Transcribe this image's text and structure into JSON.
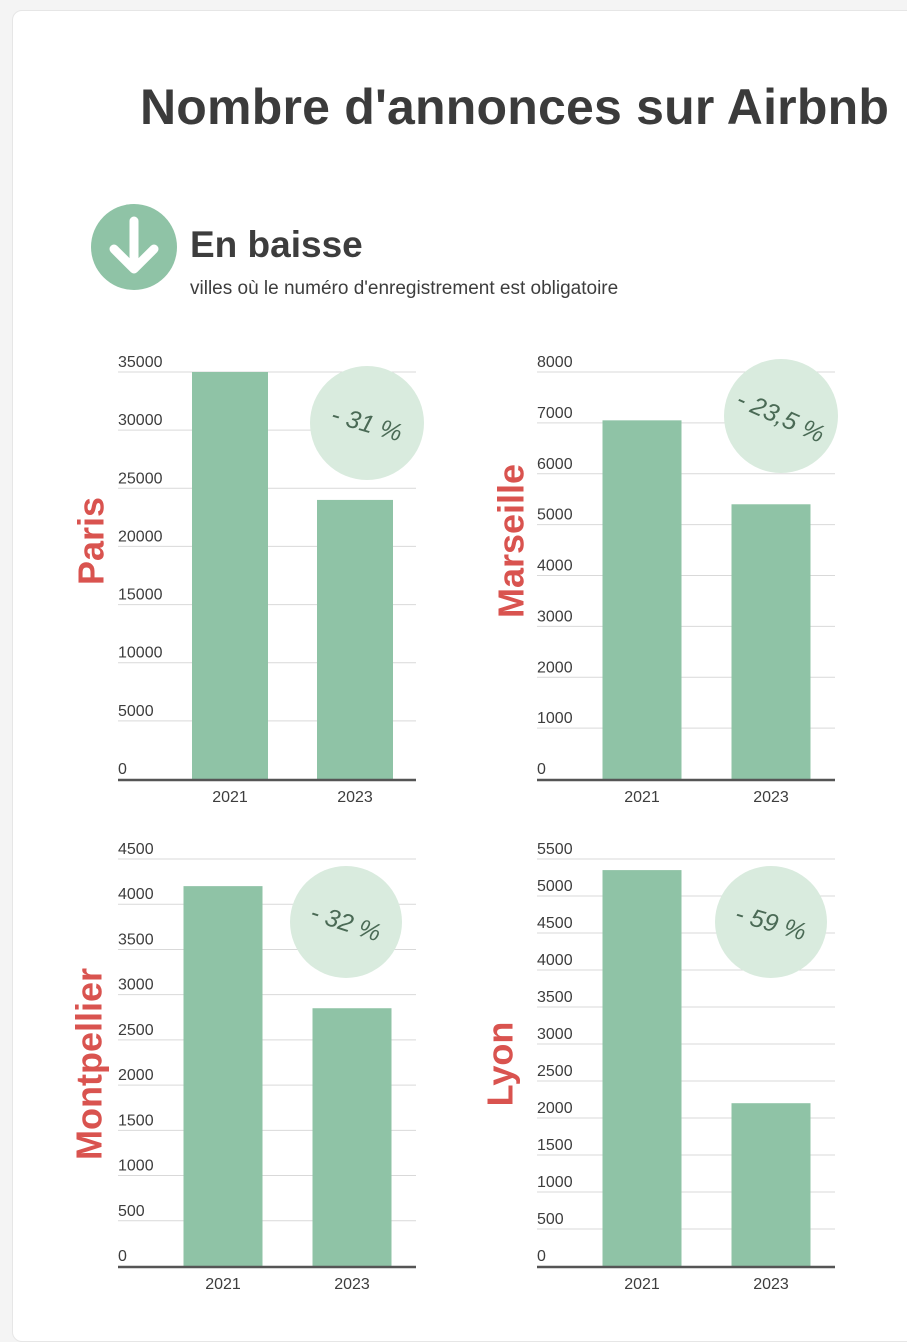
{
  "page": {
    "title": "Nombre d'annonces sur Airbnb",
    "section_title": "En baisse",
    "section_subtitle": "villes où le numéro d'enregistrement est obligatoire",
    "badge_icon": "arrow-down-icon"
  },
  "colors": {
    "bar": "#8fc3a6",
    "city_label": "#d9534f",
    "badge": "#8fc3a6",
    "change_circle": "#d9ebde",
    "change_text": "#4a6a55",
    "grid": "#d9d9d9",
    "axis": "#555555"
  },
  "chart_data": [
    {
      "type": "bar",
      "city": "Paris",
      "categories": [
        "2021",
        "2023"
      ],
      "values": [
        35000,
        24000
      ],
      "ylim": [
        0,
        35000
      ],
      "yticks": [
        0,
        5000,
        10000,
        15000,
        20000,
        25000,
        30000,
        35000
      ],
      "change": "- 31 %",
      "grid": true
    },
    {
      "type": "bar",
      "city": "Marseille",
      "categories": [
        "2021",
        "2023"
      ],
      "values": [
        7050,
        5400
      ],
      "ylim": [
        0,
        8000
      ],
      "yticks": [
        0,
        1000,
        2000,
        3000,
        4000,
        5000,
        6000,
        7000,
        8000
      ],
      "change": "- 23,5 %",
      "grid": true
    },
    {
      "type": "bar",
      "city": "Montpellier",
      "categories": [
        "2021",
        "2023"
      ],
      "values": [
        4200,
        2850
      ],
      "ylim": [
        0,
        4500
      ],
      "yticks": [
        0,
        500,
        1000,
        1500,
        2000,
        2500,
        3000,
        3500,
        4000,
        4500
      ],
      "change": "- 32 %",
      "grid": true
    },
    {
      "type": "bar",
      "city": "Lyon",
      "categories": [
        "2021",
        "2023"
      ],
      "values": [
        5350,
        2200
      ],
      "ylim": [
        0,
        5500
      ],
      "yticks": [
        0,
        500,
        1000,
        1500,
        2000,
        2500,
        3000,
        3500,
        4000,
        4500,
        5000,
        5500
      ],
      "change": "- 59 %",
      "grid": true
    }
  ]
}
